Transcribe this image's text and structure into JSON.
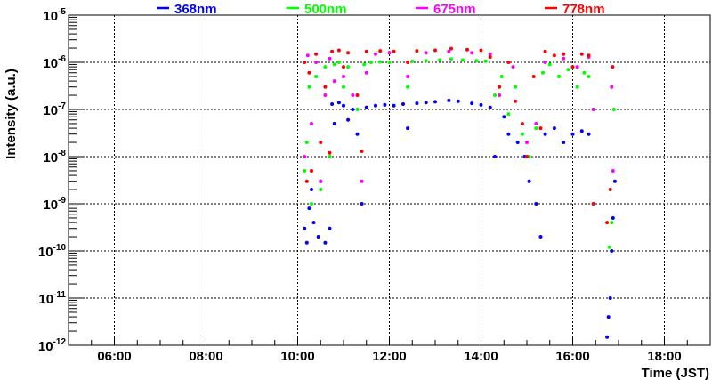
{
  "chart_data": {
    "type": "scatter",
    "title": "",
    "xlabel": "Time (JST)",
    "ylabel": "Intensity (a.u.)",
    "xlim_hours": [
      5,
      19
    ],
    "ylim": [
      1e-12,
      1e-05
    ],
    "yscale": "log",
    "grid": true,
    "legend_placement": "top",
    "x_ticks": [
      {
        "label": "06:00",
        "hour": 6
      },
      {
        "label": "08:00",
        "hour": 8
      },
      {
        "label": "10:00",
        "hour": 10
      },
      {
        "label": "12:00",
        "hour": 12
      },
      {
        "label": "14:00",
        "hour": 14
      },
      {
        "label": "16:00",
        "hour": 16
      },
      {
        "label": "18:00",
        "hour": 18
      }
    ],
    "y_ticks": [
      {
        "base": "10",
        "exp": "-5",
        "value": 1e-05
      },
      {
        "base": "10",
        "exp": "-6",
        "value": 1e-06
      },
      {
        "base": "10",
        "exp": "-7",
        "value": 1e-07
      },
      {
        "base": "10",
        "exp": "-8",
        "value": 1e-08
      },
      {
        "base": "10",
        "exp": "-9",
        "value": 1e-09
      },
      {
        "base": "10",
        "exp": "-10",
        "value": 1e-10
      },
      {
        "base": "10",
        "exp": "-11",
        "value": 1e-11
      },
      {
        "base": "10",
        "exp": "-12",
        "value": 1e-12
      }
    ],
    "series": [
      {
        "name": "368nm",
        "color": "#0000ff",
        "points": [
          [
            10.15,
            3e-10
          ],
          [
            10.2,
            1.5e-10
          ],
          [
            10.25,
            8e-10
          ],
          [
            10.3,
            2e-09
          ],
          [
            10.35,
            4e-10
          ],
          [
            10.45,
            2e-10
          ],
          [
            10.5,
            3e-09
          ],
          [
            10.6,
            1.5e-10
          ],
          [
            10.7,
            3e-10
          ],
          [
            10.75,
            1.3e-07
          ],
          [
            10.8,
            5e-08
          ],
          [
            10.9,
            1.4e-07
          ],
          [
            11.0,
            1.2e-07
          ],
          [
            11.1,
            6e-08
          ],
          [
            11.2,
            1e-07
          ],
          [
            11.3,
            3e-08
          ],
          [
            11.4,
            1e-09
          ],
          [
            11.5,
            1.1e-07
          ],
          [
            11.7,
            1.2e-07
          ],
          [
            11.9,
            1.25e-07
          ],
          [
            12.1,
            1.2e-07
          ],
          [
            12.3,
            1.3e-07
          ],
          [
            12.4,
            4e-08
          ],
          [
            12.6,
            1.35e-07
          ],
          [
            12.8,
            1.4e-07
          ],
          [
            13.0,
            1.45e-07
          ],
          [
            13.3,
            1.55e-07
          ],
          [
            13.5,
            1.5e-07
          ],
          [
            13.8,
            1.35e-07
          ],
          [
            14.0,
            1.25e-07
          ],
          [
            14.2,
            1.1e-07
          ],
          [
            14.3,
            1e-08
          ],
          [
            14.5,
            7e-08
          ],
          [
            14.6,
            3e-08
          ],
          [
            14.8,
            2e-08
          ],
          [
            14.95,
            1e-08
          ],
          [
            15.05,
            3e-09
          ],
          [
            15.2,
            1e-09
          ],
          [
            15.3,
            2e-10
          ],
          [
            15.4,
            3e-08
          ],
          [
            15.6,
            4e-08
          ],
          [
            15.8,
            2e-08
          ],
          [
            16.0,
            3e-08
          ],
          [
            16.2,
            3.5e-08
          ],
          [
            16.35,
            3e-08
          ],
          [
            16.75,
            1.5e-12
          ],
          [
            16.78,
            4e-12
          ],
          [
            16.82,
            1e-11
          ],
          [
            16.85,
            1e-10
          ],
          [
            16.88,
            5e-10
          ],
          [
            16.92,
            3e-09
          ]
        ]
      },
      {
        "name": "500nm",
        "color": "#00ff00",
        "points": [
          [
            10.15,
            5e-09
          ],
          [
            10.2,
            2e-08
          ],
          [
            10.25,
            3e-07
          ],
          [
            10.3,
            1e-09
          ],
          [
            10.4,
            5e-07
          ],
          [
            10.5,
            2e-09
          ],
          [
            10.6,
            8e-07
          ],
          [
            10.7,
            1e-08
          ],
          [
            10.8,
            9e-07
          ],
          [
            10.9,
            1e-06
          ],
          [
            11.0,
            3e-07
          ],
          [
            11.1,
            8e-07
          ],
          [
            11.3,
            1e-07
          ],
          [
            11.45,
            9e-07
          ],
          [
            11.6,
            1e-06
          ],
          [
            11.8,
            1.02e-06
          ],
          [
            12.0,
            1e-06
          ],
          [
            12.4,
            3e-07
          ],
          [
            12.5,
            1.05e-06
          ],
          [
            12.8,
            1.08e-06
          ],
          [
            13.1,
            1.12e-06
          ],
          [
            13.35,
            1.18e-06
          ],
          [
            13.6,
            1.12e-06
          ],
          [
            13.9,
            1.08e-06
          ],
          [
            14.1,
            1.05e-06
          ],
          [
            14.3,
            2e-07
          ],
          [
            14.45,
            5e-07
          ],
          [
            14.6,
            8e-08
          ],
          [
            14.75,
            3e-07
          ],
          [
            14.9,
            3e-08
          ],
          [
            15.05,
            1e-08
          ],
          [
            15.2,
            4e-08
          ],
          [
            15.35,
            6e-07
          ],
          [
            15.5,
            9e-07
          ],
          [
            15.7,
            5e-07
          ],
          [
            15.9,
            7e-07
          ],
          [
            16.1,
            3e-07
          ],
          [
            16.25,
            6e-07
          ],
          [
            16.35,
            5e-07
          ],
          [
            16.8,
            1.2e-10
          ],
          [
            16.85,
            4e-10
          ],
          [
            16.9,
            1e-07
          ]
        ]
      },
      {
        "name": "675nm",
        "color": "#ff00ff",
        "points": [
          [
            10.15,
            1e-08
          ],
          [
            10.22,
            1.4e-06
          ],
          [
            10.3,
            5e-08
          ],
          [
            10.4,
            1e-06
          ],
          [
            10.5,
            3e-09
          ],
          [
            10.6,
            2e-07
          ],
          [
            10.7,
            1.2e-06
          ],
          [
            10.8,
            4e-07
          ],
          [
            11.0,
            5e-07
          ],
          [
            11.2,
            2e-07
          ],
          [
            11.4,
            3e-09
          ],
          [
            11.5,
            6e-07
          ],
          [
            11.7,
            1.5e-06
          ],
          [
            12.0,
            1.6e-06
          ],
          [
            12.4,
            5e-07
          ],
          [
            12.8,
            1.6e-06
          ],
          [
            13.3,
            1.7e-06
          ],
          [
            13.8,
            1.6e-06
          ],
          [
            14.2,
            1.5e-06
          ],
          [
            14.4,
            2e-07
          ],
          [
            14.7,
            8e-07
          ],
          [
            15.0,
            2e-08
          ],
          [
            15.2,
            5e-08
          ],
          [
            15.4,
            1e-06
          ],
          [
            15.8,
            1.2e-06
          ],
          [
            16.1,
            8e-07
          ],
          [
            16.35,
            1.3e-06
          ],
          [
            16.45,
            1e-07
          ],
          [
            16.85,
            3e-07
          ],
          [
            16.88,
            5e-09
          ]
        ]
      },
      {
        "name": "778nm",
        "color": "#ff0000",
        "points": [
          [
            10.15,
            1e-06
          ],
          [
            10.2,
            3e-09
          ],
          [
            10.25,
            6e-07
          ],
          [
            10.3,
            5e-09
          ],
          [
            10.4,
            1.5e-06
          ],
          [
            10.5,
            2e-08
          ],
          [
            10.6,
            3e-07
          ],
          [
            10.7,
            1.2e-08
          ],
          [
            10.75,
            1.7e-06
          ],
          [
            10.9,
            1.8e-06
          ],
          [
            11.0,
            8e-07
          ],
          [
            11.1,
            1.6e-06
          ],
          [
            11.3,
            2e-07
          ],
          [
            11.4,
            1.3e-08
          ],
          [
            11.5,
            1.7e-06
          ],
          [
            11.8,
            1.75e-06
          ],
          [
            12.1,
            1.7e-06
          ],
          [
            12.4,
            1e-06
          ],
          [
            12.6,
            1.75e-06
          ],
          [
            13.0,
            1.8e-06
          ],
          [
            13.35,
            1.95e-06
          ],
          [
            13.7,
            1.85e-06
          ],
          [
            14.0,
            1.8e-06
          ],
          [
            14.2,
            1.3e-06
          ],
          [
            14.4,
            3e-07
          ],
          [
            14.6,
            1e-06
          ],
          [
            14.75,
            1.5e-07
          ],
          [
            14.9,
            5e-08
          ],
          [
            15.0,
            1e-08
          ],
          [
            15.15,
            5e-07
          ],
          [
            15.3,
            4e-08
          ],
          [
            15.4,
            1.7e-06
          ],
          [
            15.6,
            1.4e-06
          ],
          [
            15.8,
            1.5e-06
          ],
          [
            16.0,
            8e-07
          ],
          [
            16.2,
            1.5e-06
          ],
          [
            16.35,
            1.4e-06
          ],
          [
            16.45,
            1e-09
          ],
          [
            16.75,
            4e-10
          ],
          [
            16.82,
            2e-09
          ],
          [
            16.87,
            8e-07
          ]
        ]
      }
    ]
  }
}
